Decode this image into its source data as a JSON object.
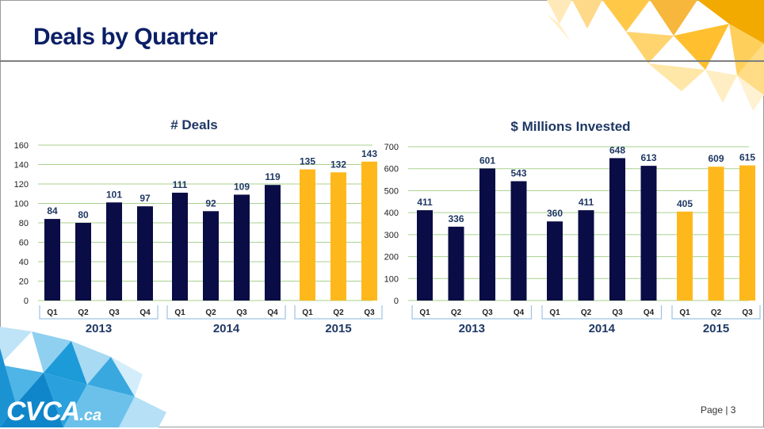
{
  "slide": {
    "title": "Deals by Quarter",
    "page_label": "Page | 3",
    "logo_text": "CVCA",
    "logo_suffix": ".ca"
  },
  "colors": {
    "dark_bar": "#0a0c45",
    "highlight_bar": "#ffb81c",
    "grid": "#a9d08e",
    "bracket": "#9dc3e6",
    "title_blue": "#0b1f66"
  },
  "chart_data": [
    {
      "type": "bar",
      "title": "# Deals",
      "categories": [
        "Q1",
        "Q2",
        "Q3",
        "Q4",
        "Q1",
        "Q2",
        "Q3",
        "Q4",
        "Q1",
        "Q2",
        "Q3"
      ],
      "groups": [
        {
          "label": "2013",
          "count": 4
        },
        {
          "label": "2014",
          "count": 4
        },
        {
          "label": "2015",
          "count": 3
        }
      ],
      "values": [
        84,
        80,
        101,
        97,
        111,
        92,
        109,
        119,
        135,
        132,
        143
      ],
      "highlight_group": "2015",
      "ylim": [
        0,
        160
      ],
      "yticks": [
        0,
        20,
        40,
        60,
        80,
        100,
        120,
        140,
        160
      ],
      "grid": true
    },
    {
      "type": "bar",
      "title": "$ Millions Invested",
      "categories": [
        "Q1",
        "Q2",
        "Q3",
        "Q4",
        "Q1",
        "Q2",
        "Q3",
        "Q4",
        "Q1",
        "Q2",
        "Q3"
      ],
      "groups": [
        {
          "label": "2013",
          "count": 4
        },
        {
          "label": "2014",
          "count": 4
        },
        {
          "label": "2015",
          "count": 3
        }
      ],
      "values": [
        411,
        336,
        601,
        543,
        360,
        411,
        648,
        613,
        405,
        609,
        615
      ],
      "highlight_group": "2015",
      "ylim": [
        0,
        700
      ],
      "yticks": [
        0,
        100,
        200,
        300,
        400,
        500,
        600,
        700
      ],
      "grid": true
    }
  ]
}
